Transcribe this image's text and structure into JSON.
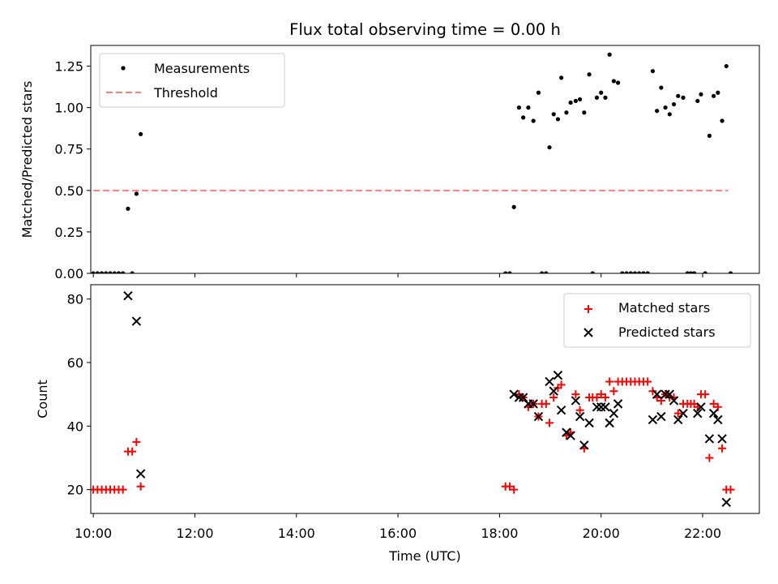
{
  "chart_data": [
    {
      "type": "scatter",
      "title": "Flux total observing time = 0.00 h",
      "xlabel": "",
      "ylabel": "Matched/Predicted stars",
      "xlim": [
        "09:57",
        "23:07"
      ],
      "ylim": [
        0.0,
        1.375
      ],
      "yticks": [
        0.0,
        0.25,
        0.5,
        0.75,
        1.0,
        1.25
      ],
      "ytick_labels": [
        "0.00",
        "0.25",
        "0.50",
        "0.75",
        "1.00",
        "1.25"
      ],
      "legend_position": "top-left",
      "grid": false,
      "series": [
        {
          "name": "Measurements",
          "marker": "dot",
          "color": "#000000",
          "points": [
            [
              "10:00",
              0
            ],
            [
              "10:05",
              0
            ],
            [
              "10:10",
              0
            ],
            [
              "10:15",
              0
            ],
            [
              "10:20",
              0
            ],
            [
              "10:25",
              0
            ],
            [
              "10:30",
              0
            ],
            [
              "10:35",
              0
            ],
            [
              "10:41",
              0.39
            ],
            [
              "10:46",
              0
            ],
            [
              "10:51",
              0.48
            ],
            [
              "10:56",
              0.84
            ],
            [
              "18:07",
              0
            ],
            [
              "18:12",
              0
            ],
            [
              "18:17",
              0.4
            ],
            [
              "18:23",
              1.0
            ],
            [
              "18:28",
              0.94
            ],
            [
              "18:34",
              1.0
            ],
            [
              "18:40",
              0.92
            ],
            [
              "18:46",
              1.09
            ],
            [
              "18:50",
              0
            ],
            [
              "18:55",
              0
            ],
            [
              "18:59",
              0.76
            ],
            [
              "19:04",
              0.96
            ],
            [
              "19:09",
              0.93
            ],
            [
              "19:13",
              1.18
            ],
            [
              "19:19",
              0.97
            ],
            [
              "19:24",
              1.03
            ],
            [
              "19:30",
              1.04
            ],
            [
              "19:35",
              1.05
            ],
            [
              "19:40",
              0.97
            ],
            [
              "19:46",
              1.2
            ],
            [
              "19:50",
              0
            ],
            [
              "19:55",
              1.06
            ],
            [
              "20:00",
              1.09
            ],
            [
              "20:05",
              1.06
            ],
            [
              "20:10",
              1.32
            ],
            [
              "20:15",
              1.16
            ],
            [
              "20:20",
              1.15
            ],
            [
              "20:25",
              0
            ],
            [
              "20:30",
              0
            ],
            [
              "20:35",
              0
            ],
            [
              "20:40",
              0
            ],
            [
              "20:45",
              0
            ],
            [
              "20:50",
              0
            ],
            [
              "20:55",
              0
            ],
            [
              "21:01",
              1.22
            ],
            [
              "21:06",
              0.98
            ],
            [
              "21:11",
              1.12
            ],
            [
              "21:16",
              1.0
            ],
            [
              "21:21",
              0.96
            ],
            [
              "21:26",
              1.02
            ],
            [
              "21:31",
              1.07
            ],
            [
              "21:37",
              1.06
            ],
            [
              "21:42",
              0
            ],
            [
              "21:46",
              0
            ],
            [
              "21:50",
              0
            ],
            [
              "21:54",
              1.04
            ],
            [
              "21:58",
              1.08
            ],
            [
              "22:03",
              0
            ],
            [
              "22:08",
              0.83
            ],
            [
              "22:13",
              1.07
            ],
            [
              "22:18",
              1.09
            ],
            [
              "22:23",
              0.92
            ],
            [
              "22:28",
              1.25
            ],
            [
              "22:33",
              0
            ]
          ]
        },
        {
          "name": "Threshold",
          "marker": "dashed-line",
          "color": "#ff7f7f",
          "points": [
            [
              "10:00",
              0.5
            ],
            [
              "22:30",
              0.5
            ]
          ]
        }
      ]
    },
    {
      "type": "scatter",
      "title": "",
      "xlabel": "Time (UTC)",
      "ylabel": "Count",
      "xlim": [
        "09:57",
        "23:07"
      ],
      "ylim": [
        12.5,
        84.5
      ],
      "yticks": [
        20,
        40,
        60,
        80
      ],
      "ytick_labels": [
        "20",
        "40",
        "60",
        "80"
      ],
      "xticks": [
        "10:00",
        "12:00",
        "14:00",
        "16:00",
        "18:00",
        "20:00",
        "22:00"
      ],
      "legend_position": "top-right",
      "grid": false,
      "series": [
        {
          "name": "Matched stars",
          "marker": "plus",
          "color": "#ff0000",
          "points": [
            [
              "10:00",
              20
            ],
            [
              "10:05",
              20
            ],
            [
              "10:10",
              20
            ],
            [
              "10:15",
              20
            ],
            [
              "10:20",
              20
            ],
            [
              "10:25",
              20
            ],
            [
              "10:30",
              20
            ],
            [
              "10:35",
              20
            ],
            [
              "10:41",
              32
            ],
            [
              "10:46",
              32
            ],
            [
              "10:51",
              35
            ],
            [
              "10:56",
              21
            ],
            [
              "18:07",
              21
            ],
            [
              "18:12",
              21
            ],
            [
              "18:17",
              20
            ],
            [
              "18:23",
              50
            ],
            [
              "18:28",
              49
            ],
            [
              "18:34",
              46
            ],
            [
              "18:40",
              47
            ],
            [
              "18:46",
              43
            ],
            [
              "18:50",
              47
            ],
            [
              "18:55",
              47
            ],
            [
              "18:59",
              41
            ],
            [
              "19:04",
              49
            ],
            [
              "19:09",
              52
            ],
            [
              "19:13",
              53
            ],
            [
              "19:19",
              37
            ],
            [
              "19:24",
              38
            ],
            [
              "19:30",
              50
            ],
            [
              "19:35",
              45
            ],
            [
              "19:40",
              33
            ],
            [
              "19:46",
              49
            ],
            [
              "19:50",
              49
            ],
            [
              "19:55",
              49
            ],
            [
              "20:00",
              50
            ],
            [
              "20:05",
              49
            ],
            [
              "20:10",
              54
            ],
            [
              "20:15",
              51
            ],
            [
              "20:20",
              54
            ],
            [
              "20:25",
              54
            ],
            [
              "20:30",
              54
            ],
            [
              "20:35",
              54
            ],
            [
              "20:40",
              54
            ],
            [
              "20:45",
              54
            ],
            [
              "20:50",
              54
            ],
            [
              "20:55",
              54
            ],
            [
              "21:01",
              51
            ],
            [
              "21:06",
              49
            ],
            [
              "21:11",
              48
            ],
            [
              "21:16",
              50
            ],
            [
              "21:21",
              49
            ],
            [
              "21:26",
              49
            ],
            [
              "21:31",
              44
            ],
            [
              "21:37",
              47
            ],
            [
              "21:42",
              47
            ],
            [
              "21:46",
              47
            ],
            [
              "21:50",
              47
            ],
            [
              "21:54",
              46
            ],
            [
              "21:58",
              50
            ],
            [
              "22:03",
              50
            ],
            [
              "22:08",
              30
            ],
            [
              "22:13",
              47
            ],
            [
              "22:18",
              46
            ],
            [
              "22:23",
              33
            ],
            [
              "22:28",
              20
            ],
            [
              "22:33",
              20
            ]
          ]
        },
        {
          "name": "Predicted stars",
          "marker": "x",
          "color": "#000000",
          "points": [
            [
              "10:41",
              81
            ],
            [
              "10:51",
              73
            ],
            [
              "10:56",
              25
            ],
            [
              "18:17",
              50
            ],
            [
              "18:23",
              49
            ],
            [
              "18:28",
              49
            ],
            [
              "18:34",
              47
            ],
            [
              "18:40",
              47
            ],
            [
              "18:46",
              43
            ],
            [
              "18:59",
              54
            ],
            [
              "19:04",
              51
            ],
            [
              "19:09",
              56
            ],
            [
              "19:13",
              45
            ],
            [
              "19:19",
              38
            ],
            [
              "19:24",
              37
            ],
            [
              "19:30",
              48
            ],
            [
              "19:35",
              43
            ],
            [
              "19:40",
              34
            ],
            [
              "19:46",
              41
            ],
            [
              "19:55",
              46
            ],
            [
              "20:00",
              46
            ],
            [
              "20:05",
              46
            ],
            [
              "20:10",
              41
            ],
            [
              "20:15",
              44
            ],
            [
              "20:20",
              47
            ],
            [
              "21:01",
              42
            ],
            [
              "21:06",
              50
            ],
            [
              "21:11",
              43
            ],
            [
              "21:16",
              50
            ],
            [
              "21:21",
              50
            ],
            [
              "21:26",
              48
            ],
            [
              "21:31",
              42
            ],
            [
              "21:37",
              44
            ],
            [
              "21:54",
              44
            ],
            [
              "21:58",
              46
            ],
            [
              "22:08",
              36
            ],
            [
              "22:13",
              44
            ],
            [
              "22:18",
              42
            ],
            [
              "22:23",
              36
            ],
            [
              "22:28",
              16
            ]
          ]
        }
      ]
    }
  ]
}
